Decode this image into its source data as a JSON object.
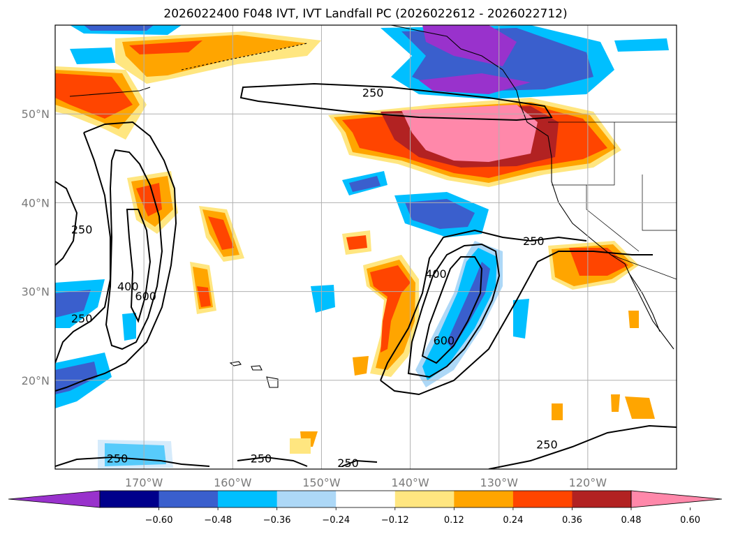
{
  "title": "2026022400 F048 IVT, IVT Landfall PC (2026022612 - 2026022712)",
  "map": {
    "lon_range": [
      -180,
      -110
    ],
    "lat_range": [
      10,
      60
    ],
    "lon_ticks": [
      {
        "lon": -170,
        "label": "170°W"
      },
      {
        "lon": -160,
        "label": "160°W"
      },
      {
        "lon": -150,
        "label": "150°W"
      },
      {
        "lon": -140,
        "label": "140°W"
      },
      {
        "lon": -130,
        "label": "130°W"
      },
      {
        "lon": -120,
        "label": "120°W"
      }
    ],
    "lat_ticks": [
      {
        "lat": 20,
        "label": "20°N"
      },
      {
        "lat": 30,
        "label": "30°N"
      },
      {
        "lat": 40,
        "label": "40°N"
      },
      {
        "lat": 50,
        "label": "50°N"
      }
    ],
    "gridlines": true
  },
  "colorbar": {
    "ticks": [
      "−0.60",
      "−0.48",
      "−0.36",
      "−0.24",
      "−0.12",
      "0.12",
      "0.24",
      "0.36",
      "0.48",
      "0.60"
    ],
    "colors": [
      "#9932cc",
      "#00008b",
      "#3a5fcd",
      "#00bfff",
      "#add8f7",
      "#ffffff",
      "#ffe680",
      "#ffa500",
      "#ff4500",
      "#b22222",
      "#ff88aa"
    ],
    "extend": "both"
  },
  "contour_labels": [
    {
      "text": "250",
      "lon": -144.2,
      "lat": 52.4
    },
    {
      "text": "250",
      "lon": -177,
      "lat": 37
    },
    {
      "text": "400",
      "lon": -171.8,
      "lat": 30.6
    },
    {
      "text": "600",
      "lon": -169.8,
      "lat": 29.5
    },
    {
      "text": "250",
      "lon": -177,
      "lat": 27
    },
    {
      "text": "400",
      "lon": -137.1,
      "lat": 32
    },
    {
      "text": "600",
      "lon": -136.2,
      "lat": 24.5
    },
    {
      "text": "250",
      "lon": -126.1,
      "lat": 35.7
    },
    {
      "text": "250",
      "lon": -173,
      "lat": 11.2
    },
    {
      "text": "250",
      "lon": -156.8,
      "lat": 11.2
    },
    {
      "text": "250",
      "lon": -147,
      "lat": 10.7
    },
    {
      "text": "250",
      "lon": -124.6,
      "lat": 12.8
    }
  ]
}
